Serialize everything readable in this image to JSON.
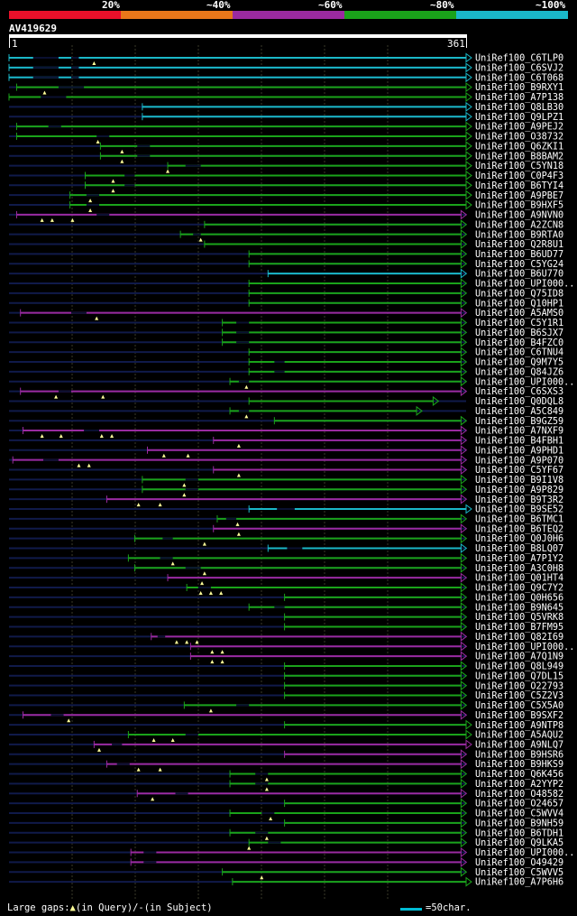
{
  "query": {
    "name": "AV419629",
    "start_label": "1",
    "end_label": "361",
    "length": 361
  },
  "legend": {
    "labels": [
      "20%",
      "~40%",
      "~60%",
      "~80%",
      "~100%"
    ],
    "colors": [
      "#e8102a",
      "#e8771a",
      "#9a2aa0",
      "#1aa31a",
      "#1ab8c8"
    ]
  },
  "footer": {
    "left_prefix": "Large gaps:",
    "left_query": "(in Query)/-",
    "left_subject": "(in Subject)",
    "right_label": "=50char."
  },
  "chart_data": {
    "type": "alignment-map",
    "query_length": 361,
    "hits": [
      {
        "name": "UniRef100_C6TLP0",
        "c": "cyan",
        "s": 1,
        "e": 361,
        "gaps": [
          [
            20,
            40
          ],
          [
            50,
            56
          ]
        ],
        "tri": [
          68
        ]
      },
      {
        "name": "UniRef100_C6SVJ2",
        "c": "cyan",
        "s": 1,
        "e": 361,
        "gaps": [
          [
            20,
            40
          ],
          [
            50,
            56
          ]
        ],
        "tri": []
      },
      {
        "name": "UniRef100_C6T068",
        "c": "cyan",
        "s": 1,
        "e": 361,
        "gaps": [
          [
            20,
            40
          ],
          [
            50,
            56
          ]
        ],
        "tri": []
      },
      {
        "name": "UniRef100_B9RXY1",
        "c": "green",
        "s": 7,
        "e": 361,
        "gaps": [
          [
            40,
            60
          ]
        ],
        "tri": [
          29
        ]
      },
      {
        "name": "UniRef100_A7P138",
        "c": "green",
        "s": 1,
        "e": 361,
        "gaps": [
          [
            26,
            46
          ]
        ],
        "tri": []
      },
      {
        "name": "UniRef100_Q8LB30",
        "c": "cyan",
        "s": 106,
        "e": 361,
        "gaps": [],
        "tri": []
      },
      {
        "name": "UniRef100_Q9LPZ1",
        "c": "cyan",
        "s": 106,
        "e": 361,
        "gaps": [],
        "tri": []
      },
      {
        "name": "UniRef100_A9PEJ2",
        "c": "green",
        "s": 7,
        "e": 361,
        "gaps": [
          [
            32,
            42
          ]
        ],
        "tri": []
      },
      {
        "name": "UniRef100_O38732",
        "c": "green",
        "s": 7,
        "e": 361,
        "gaps": [
          [
            70,
            80
          ]
        ],
        "tri": [
          71
        ]
      },
      {
        "name": "UniRef100_Q6ZKI1",
        "c": "green",
        "s": 73,
        "e": 361,
        "gaps": [
          [
            102,
            112
          ]
        ],
        "tri": [
          90
        ]
      },
      {
        "name": "UniRef100_B8BAM2",
        "c": "green",
        "s": 73,
        "e": 361,
        "gaps": [
          [
            102,
            112
          ]
        ],
        "tri": [
          90
        ]
      },
      {
        "name": "UniRef100_C5YN18",
        "c": "green",
        "s": 126,
        "e": 361,
        "gaps": [
          [
            140,
            152
          ]
        ],
        "tri": [
          126
        ]
      },
      {
        "name": "UniRef100_C0P4F3",
        "c": "green",
        "s": 61,
        "e": 361,
        "gaps": [
          [
            92,
            100
          ]
        ],
        "tri": [
          83
        ]
      },
      {
        "name": "UniRef100_B6TYI4",
        "c": "green",
        "s": 61,
        "e": 361,
        "gaps": [
          [
            92,
            100
          ]
        ],
        "tri": [
          83
        ]
      },
      {
        "name": "UniRef100_A9PBE7",
        "c": "green",
        "s": 49,
        "e": 361,
        "gaps": [
          [
            62,
            72
          ]
        ],
        "tri": [
          65
        ]
      },
      {
        "name": "UniRef100_B9HXF5",
        "c": "green",
        "s": 49,
        "e": 361,
        "gaps": [
          [
            62,
            72
          ]
        ],
        "tri": [
          65
        ]
      },
      {
        "name": "UniRef100_A9NVN0",
        "c": "magenta",
        "s": 7,
        "e": 357,
        "gaps": [
          [
            70,
            80
          ]
        ],
        "tri": [
          27,
          35,
          51
        ]
      },
      {
        "name": "UniRef100_A2ZCN8",
        "c": "green",
        "s": 155,
        "e": 357,
        "gaps": [],
        "tri": []
      },
      {
        "name": "UniRef100_B9RTA0",
        "c": "green",
        "s": 136,
        "e": 357,
        "gaps": [
          [
            146,
            152
          ]
        ],
        "tri": [
          152
        ]
      },
      {
        "name": "UniRef100_Q2R8U1",
        "c": "green",
        "s": 155,
        "e": 357,
        "gaps": [],
        "tri": []
      },
      {
        "name": "UniRef100_B6UD77",
        "c": "green",
        "s": 190,
        "e": 357,
        "gaps": [],
        "tri": []
      },
      {
        "name": "UniRef100_C5YG24",
        "c": "green",
        "s": 190,
        "e": 357,
        "gaps": [],
        "tri": []
      },
      {
        "name": "UniRef100_B6U770",
        "c": "cyan",
        "s": 205,
        "e": 357,
        "gaps": [],
        "tri": []
      },
      {
        "name": "UniRef100_UPI000..",
        "c": "green",
        "s": 190,
        "e": 357,
        "gaps": [],
        "tri": []
      },
      {
        "name": "UniRef100_Q75ID8",
        "c": "green",
        "s": 190,
        "e": 357,
        "gaps": [],
        "tri": []
      },
      {
        "name": "UniRef100_Q10HP1",
        "c": "green",
        "s": 190,
        "e": 357,
        "gaps": [],
        "tri": []
      },
      {
        "name": "UniRef100_A5AMS0",
        "c": "magenta",
        "s": 10,
        "e": 357,
        "gaps": [
          [
            50,
            62
          ]
        ],
        "tri": [
          70
        ]
      },
      {
        "name": "UniRef100_C5Y1R1",
        "c": "green",
        "s": 169,
        "e": 357,
        "gaps": [
          [
            180,
            190
          ]
        ],
        "tri": []
      },
      {
        "name": "UniRef100_B6SJX7",
        "c": "green",
        "s": 169,
        "e": 357,
        "gaps": [
          [
            180,
            190
          ]
        ],
        "tri": []
      },
      {
        "name": "UniRef100_B4FZC0",
        "c": "green",
        "s": 169,
        "e": 357,
        "gaps": [
          [
            180,
            190
          ]
        ],
        "tri": []
      },
      {
        "name": "UniRef100_C6TNU4",
        "c": "green",
        "s": 190,
        "e": 357,
        "gaps": [],
        "tri": []
      },
      {
        "name": "UniRef100_Q9M7Y5",
        "c": "green",
        "s": 190,
        "e": 357,
        "gaps": [
          [
            210,
            218
          ]
        ],
        "tri": []
      },
      {
        "name": "UniRef100_Q84JZ6",
        "c": "green",
        "s": 190,
        "e": 357,
        "gaps": [
          [
            210,
            218
          ]
        ],
        "tri": []
      },
      {
        "name": "UniRef100_UPI000..",
        "c": "green",
        "s": 175,
        "e": 357,
        "gaps": [
          [
            182,
            190
          ]
        ],
        "tri": [
          188
        ]
      },
      {
        "name": "UniRef100_C6SXS3",
        "c": "magenta",
        "s": 10,
        "e": 357,
        "gaps": [
          [
            40,
            50
          ]
        ],
        "tri": [
          38,
          75
        ]
      },
      {
        "name": "UniRef100_Q0DQL8",
        "c": "green",
        "s": 190,
        "e": 335,
        "gaps": [],
        "tri": []
      },
      {
        "name": "UniRef100_A5C849",
        "c": "green",
        "s": 175,
        "e": 322,
        "gaps": [
          [
            182,
            190
          ]
        ],
        "tri": [
          188
        ]
      },
      {
        "name": "UniRef100_B9GZ59",
        "c": "green",
        "s": 210,
        "e": 357,
        "gaps": [],
        "tri": []
      },
      {
        "name": "UniRef100_A7NXF9",
        "c": "magenta",
        "s": 12,
        "e": 357,
        "gaps": [
          [
            60,
            72
          ]
        ],
        "tri": [
          27,
          42,
          74,
          82
        ]
      },
      {
        "name": "UniRef100_B4FBH1",
        "c": "magenta",
        "s": 162,
        "e": 357,
        "gaps": [],
        "tri": [
          182
        ]
      },
      {
        "name": "UniRef100_A9PHD1",
        "c": "magenta",
        "s": 110,
        "e": 357,
        "gaps": [],
        "tri": [
          123,
          142
        ]
      },
      {
        "name": "UniRef100_A9P070",
        "c": "magenta",
        "s": 4,
        "e": 357,
        "gaps": [
          [
            28,
            40
          ]
        ],
        "tri": [
          56,
          64
        ]
      },
      {
        "name": "UniRef100_C5YF67",
        "c": "magenta",
        "s": 162,
        "e": 357,
        "gaps": [],
        "tri": [
          182
        ]
      },
      {
        "name": "UniRef100_B9I1V8",
        "c": "green",
        "s": 106,
        "e": 357,
        "gaps": [
          [
            140,
            150
          ]
        ],
        "tri": [
          139
        ]
      },
      {
        "name": "UniRef100_A9P829",
        "c": "green",
        "s": 106,
        "e": 357,
        "gaps": [
          [
            140,
            150
          ]
        ],
        "tri": [
          139
        ]
      },
      {
        "name": "UniRef100_B9T3R2",
        "c": "magenta",
        "s": 78,
        "e": 357,
        "gaps": [],
        "tri": [
          103,
          120
        ]
      },
      {
        "name": "UniRef100_B9SE52",
        "c": "cyan",
        "s": 190,
        "e": 361,
        "gaps": [
          [
            212,
            226
          ]
        ],
        "tri": []
      },
      {
        "name": "UniRef100_B6TMC1",
        "c": "green",
        "s": 165,
        "e": 357,
        "gaps": [
          [
            172,
            180
          ]
        ],
        "tri": [
          181
        ]
      },
      {
        "name": "UniRef100_B6TEQ2",
        "c": "magenta",
        "s": 162,
        "e": 357,
        "gaps": [],
        "tri": [
          182
        ]
      },
      {
        "name": "UniRef100_Q0J0H6",
        "c": "green",
        "s": 100,
        "e": 357,
        "gaps": [
          [
            122,
            130
          ]
        ],
        "tri": [
          155
        ]
      },
      {
        "name": "UniRef100_B8LQ07",
        "c": "cyan",
        "s": 205,
        "e": 357,
        "gaps": [
          [
            220,
            232
          ]
        ],
        "tri": []
      },
      {
        "name": "UniRef100_A7P1Y2",
        "c": "green",
        "s": 95,
        "e": 357,
        "gaps": [
          [
            120,
            130
          ]
        ],
        "tri": [
          130
        ]
      },
      {
        "name": "UniRef100_A3C0H8",
        "c": "green",
        "s": 100,
        "e": 357,
        "gaps": [
          [
            140,
            152
          ]
        ],
        "tri": [
          155
        ]
      },
      {
        "name": "UniRef100_Q01HT4",
        "c": "magenta",
        "s": 126,
        "e": 357,
        "gaps": [],
        "tri": [
          153
        ]
      },
      {
        "name": "UniRef100_Q9C7Y2",
        "c": "green",
        "s": 141,
        "e": 357,
        "gaps": [
          [
            150,
            160
          ]
        ],
        "tri": [
          152,
          160,
          168
        ]
      },
      {
        "name": "UniRef100_Q0H656",
        "c": "green",
        "s": 218,
        "e": 357,
        "gaps": [],
        "tri": []
      },
      {
        "name": "UniRef100_B9N645",
        "c": "green",
        "s": 190,
        "e": 357,
        "gaps": [
          [
            210,
            218
          ]
        ],
        "tri": []
      },
      {
        "name": "UniRef100_Q5VRK8",
        "c": "green",
        "s": 218,
        "e": 357,
        "gaps": [],
        "tri": []
      },
      {
        "name": "UniRef100_B7FM95",
        "c": "green",
        "s": 218,
        "e": 357,
        "gaps": [],
        "tri": []
      },
      {
        "name": "UniRef100_Q82I69",
        "c": "magenta",
        "s": 113,
        "e": 357,
        "gaps": [
          [
            118,
            124
          ]
        ],
        "tri": [
          133,
          141,
          149
        ]
      },
      {
        "name": "UniRef100_UPI000..",
        "c": "magenta",
        "s": 144,
        "e": 357,
        "gaps": [],
        "tri": [
          161,
          169
        ]
      },
      {
        "name": "UniRef100_A7Q1N9",
        "c": "magenta",
        "s": 144,
        "e": 357,
        "gaps": [],
        "tri": [
          161,
          169
        ]
      },
      {
        "name": "UniRef100_Q8L949",
        "c": "green",
        "s": 218,
        "e": 357,
        "gaps": [],
        "tri": []
      },
      {
        "name": "UniRef100_Q7DL15",
        "c": "green",
        "s": 218,
        "e": 357,
        "gaps": [],
        "tri": []
      },
      {
        "name": "UniRef100_O22793",
        "c": "green",
        "s": 218,
        "e": 357,
        "gaps": [],
        "tri": []
      },
      {
        "name": "UniRef100_C5Z2V3",
        "c": "green",
        "s": 218,
        "e": 357,
        "gaps": [],
        "tri": []
      },
      {
        "name": "UniRef100_C5X5A0",
        "c": "green",
        "s": 139,
        "e": 357,
        "gaps": [
          [
            180,
            190
          ]
        ],
        "tri": [
          160
        ]
      },
      {
        "name": "UniRef100_B9SXF2",
        "c": "magenta",
        "s": 12,
        "e": 357,
        "gaps": [
          [
            34,
            44
          ]
        ],
        "tri": [
          48
        ]
      },
      {
        "name": "UniRef100_A9NTP8",
        "c": "green",
        "s": 218,
        "e": 361,
        "gaps": [],
        "tri": []
      },
      {
        "name": "UniRef100_A5AQU2",
        "c": "green",
        "s": 95,
        "e": 361,
        "gaps": [
          [
            140,
            150
          ]
        ],
        "tri": [
          115,
          130
        ]
      },
      {
        "name": "UniRef100_A9NLQ7",
        "c": "magenta",
        "s": 68,
        "e": 361,
        "gaps": [
          [
            82,
            90
          ]
        ],
        "tri": [
          72
        ]
      },
      {
        "name": "UniRef100_B9HSR6",
        "c": "magenta",
        "s": 218,
        "e": 357,
        "gaps": [],
        "tri": []
      },
      {
        "name": "UniRef100_B9HKS9",
        "c": "magenta",
        "s": 78,
        "e": 357,
        "gaps": [
          [
            86,
            96
          ]
        ],
        "tri": [
          103,
          120
        ]
      },
      {
        "name": "UniRef100_Q6K456",
        "c": "green",
        "s": 175,
        "e": 357,
        "gaps": [
          [
            195,
            205
          ]
        ],
        "tri": [
          204
        ]
      },
      {
        "name": "UniRef100_A2YYP2",
        "c": "green",
        "s": 175,
        "e": 357,
        "gaps": [
          [
            195,
            205
          ]
        ],
        "tri": [
          204
        ]
      },
      {
        "name": "UniRef100_O48582",
        "c": "magenta",
        "s": 102,
        "e": 357,
        "gaps": [
          [
            132,
            142
          ]
        ],
        "tri": [
          114
        ]
      },
      {
        "name": "UniRef100_O24657",
        "c": "green",
        "s": 218,
        "e": 357,
        "gaps": [],
        "tri": []
      },
      {
        "name": "UniRef100_C5WVV4",
        "c": "green",
        "s": 175,
        "e": 357,
        "gaps": [
          [
            200,
            210
          ]
        ],
        "tri": [
          207
        ]
      },
      {
        "name": "UniRef100_B9NH59",
        "c": "green",
        "s": 218,
        "e": 357,
        "gaps": [],
        "tri": []
      },
      {
        "name": "UniRef100_B6TDH1",
        "c": "green",
        "s": 175,
        "e": 357,
        "gaps": [
          [
            195,
            205
          ]
        ],
        "tri": [
          204
        ]
      },
      {
        "name": "UniRef100_Q9LKA5",
        "c": "green",
        "s": 190,
        "e": 357,
        "gaps": [
          [
            205,
            215
          ]
        ],
        "tri": [
          190
        ]
      },
      {
        "name": "UniRef100_UPI000..",
        "c": "magenta",
        "s": 97,
        "e": 357,
        "gaps": [
          [
            107,
            117
          ]
        ],
        "tri": []
      },
      {
        "name": "UniRef100_O49429",
        "c": "magenta",
        "s": 97,
        "e": 357,
        "gaps": [
          [
            107,
            117
          ]
        ],
        "tri": []
      },
      {
        "name": "UniRef100_C5WVV5",
        "c": "green",
        "s": 169,
        "e": 357,
        "gaps": [],
        "tri": [
          200
        ]
      },
      {
        "name": "UniRef100_A7P6H6",
        "c": "green",
        "s": 177,
        "e": 361,
        "gaps": [],
        "tri": []
      }
    ]
  }
}
